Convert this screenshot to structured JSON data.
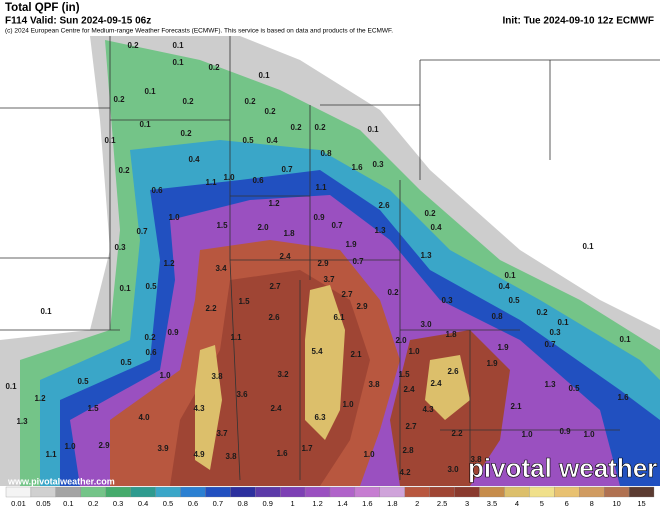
{
  "header": {
    "title": "Total QPF (in)",
    "valid": "F114 Valid: Sun 2024-09-15 06z",
    "init": "Init: Tue 2024-09-10 12z ECMWF",
    "copyright": "(c) 2024 European Centre for Medium-range Weather Forecasts (ECMWF). This service is based on data and products of the ECMWF."
  },
  "map": {
    "labels": [
      "0.2",
      "0.1",
      "0.1",
      "0.2",
      "0.1",
      "0.2",
      "0.1",
      "0.2",
      "0.2",
      "0.2",
      "0.2",
      "0.2",
      "0.1",
      "0.1",
      "0.1",
      "0.2",
      "0.5",
      "0.4",
      "0.8",
      "0.3",
      "0.2",
      "0.4",
      "0.7",
      "1.6",
      "0.6",
      "1.1",
      "1.0",
      "0.6",
      "1.1",
      "1.2",
      "2.6",
      "0.2",
      "1.0",
      "1.5",
      "2.0",
      "0.9",
      "0.7",
      "1.3",
      "0.4",
      "0.7",
      "1.8",
      "0.3",
      "1.9",
      "1.3",
      "0.1",
      "2.4",
      "2.9",
      "0.7",
      "1.2",
      "3.4",
      "0.1",
      "0.4",
      "3.7",
      "0.1",
      "0.5",
      "2.7",
      "2.7",
      "0.2",
      "0.3",
      "1.5",
      "2.2",
      "2.9",
      "0.5",
      "0.2",
      "0.1",
      "0.1",
      "2.6",
      "6.1",
      "3.0",
      "0.8",
      "1.8",
      "0.9",
      "0.2",
      "0.3",
      "0.1",
      "1.1",
      "2.0",
      "0.6",
      "5.4",
      "2.1",
      "1.0",
      "1.9",
      "0.7",
      "0.5",
      "1.0",
      "3.8",
      "3.2",
      "1.5",
      "2.6",
      "1.9",
      "0.5",
      "0.1",
      "1.2",
      "2.4",
      "2.4",
      "1.3",
      "0.5",
      "3.8",
      "3.6",
      "1.6",
      "1.5",
      "4.3",
      "2.4",
      "1.0",
      "4.3",
      "2.1",
      "1.3",
      "4.0",
      "6.3",
      "2.7",
      "3.7",
      "2.2",
      "1.0",
      "2.9",
      "3.9",
      "1.7",
      "1.0",
      "0.9",
      "1.1",
      "4.9",
      "3.8",
      "1.6",
      "1.0",
      "2.8",
      "3.0",
      "3.8",
      "4.2",
      "1.0"
    ]
  },
  "footer": {
    "website": "www.pivotalweather.com",
    "logo": "pivotal weather"
  },
  "colorbar": {
    "labels": [
      "0.01",
      "0.05",
      "0.1",
      "0.2",
      "0.3",
      "0.4",
      "0.5",
      "0.6",
      "0.7",
      "0.8",
      "0.9",
      "1",
      "1.2",
      "1.4",
      "1.6",
      "1.8",
      "2",
      "2.5",
      "3",
      "3.5",
      "4",
      "5",
      "6",
      "8",
      "10",
      "15"
    ],
    "colors": [
      "#f4f4f4",
      "#d0d0d0",
      "#a4a4a4",
      "#74c488",
      "#45ab6c",
      "#2f9b8f",
      "#3aa6c8",
      "#2b80d2",
      "#2150c0",
      "#2c309e",
      "#5b3aa8",
      "#7d40b4",
      "#9a50c0",
      "#b063c9",
      "#c67dd1",
      "#cfa3da",
      "#b8573f",
      "#9f4534",
      "#8a3a2e",
      "#c68c4b",
      "#dcbf6b",
      "#f0e08b",
      "#e8c171",
      "#d09b61",
      "#b07151",
      "#5b3b31"
    ]
  }
}
